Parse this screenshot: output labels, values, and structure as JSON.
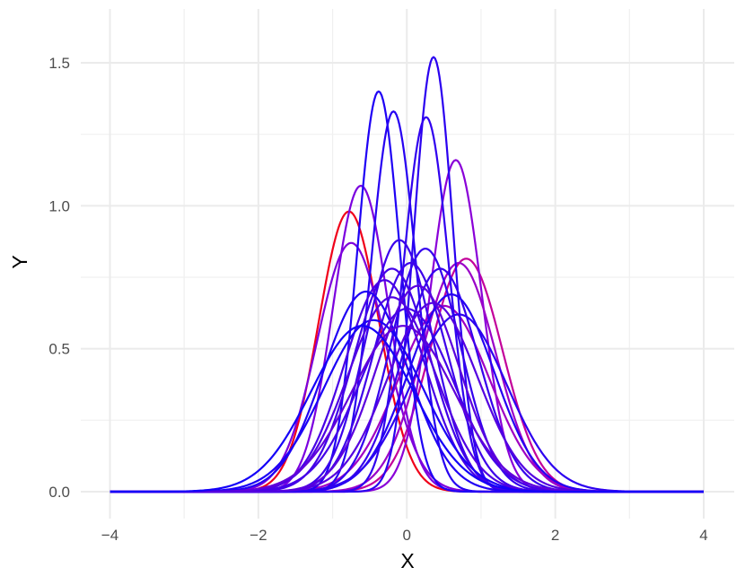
{
  "chart_data": {
    "type": "line",
    "title": "",
    "xlabel": "X",
    "ylabel": "Y",
    "xlim": [
      -4,
      4
    ],
    "ylim": [
      -0.05,
      1.6
    ],
    "x_ticks": [
      -4,
      -2,
      0,
      2,
      4
    ],
    "x_tick_labels": [
      "−4",
      "−2",
      "0",
      "2",
      "4"
    ],
    "y_ticks": [
      0.0,
      0.5,
      1.0,
      1.5
    ],
    "y_tick_labels": [
      "0.0",
      "0.5",
      "1.0",
      "1.5"
    ],
    "grid": true,
    "legend": "none",
    "description_of_series": "Gaussian density curves; each entry gives mean (mu), peak height (peak) and line color",
    "series": [
      {
        "mu": -0.78,
        "peak": 0.98,
        "color": "#f0001a"
      },
      {
        "mu": 0.8,
        "peak": 0.815,
        "color": "#c3009a"
      },
      {
        "mu": 0.66,
        "peak": 1.16,
        "color": "#8a00d8"
      },
      {
        "mu": -0.62,
        "peak": 1.07,
        "color": "#7b00df"
      },
      {
        "mu": -0.75,
        "peak": 0.87,
        "color": "#7d00dc"
      },
      {
        "mu": 0.7,
        "peak": 0.8,
        "color": "#9a00c8"
      },
      {
        "mu": 0.5,
        "peak": 0.65,
        "color": "#a000c2"
      },
      {
        "mu": 0.36,
        "peak": 1.52,
        "color": "#2a00f0"
      },
      {
        "mu": -0.38,
        "peak": 1.4,
        "color": "#1e00f5"
      },
      {
        "mu": -0.18,
        "peak": 1.33,
        "color": "#2600f2"
      },
      {
        "mu": 0.26,
        "peak": 1.31,
        "color": "#3000ef"
      },
      {
        "mu": -0.1,
        "peak": 0.88,
        "color": "#3a00ec"
      },
      {
        "mu": 0.25,
        "peak": 0.85,
        "color": "#3300ee"
      },
      {
        "mu": -0.2,
        "peak": 0.78,
        "color": "#4200e8"
      },
      {
        "mu": 0.05,
        "peak": 0.8,
        "color": "#3d00ea"
      },
      {
        "mu": -0.3,
        "peak": 0.74,
        "color": "#4800e6"
      },
      {
        "mu": 0.45,
        "peak": 0.78,
        "color": "#3600ed"
      },
      {
        "mu": -0.55,
        "peak": 0.7,
        "color": "#2000f4"
      },
      {
        "mu": 0.6,
        "peak": 0.69,
        "color": "#2400f3"
      },
      {
        "mu": -0.45,
        "peak": 0.6,
        "color": "#1a00f6"
      },
      {
        "mu": -0.2,
        "peak": 0.68,
        "color": "#5000e2"
      },
      {
        "mu": 0.15,
        "peak": 0.72,
        "color": "#5a00de"
      },
      {
        "mu": 0.0,
        "peak": 0.64,
        "color": "#4400e8"
      },
      {
        "mu": 0.7,
        "peak": 0.62,
        "color": "#2c00f0"
      },
      {
        "mu": -0.05,
        "peak": 0.58,
        "color": "#6000db"
      },
      {
        "mu": 0.35,
        "peak": 0.66,
        "color": "#5400e0"
      },
      {
        "mu": -0.6,
        "peak": 0.58,
        "color": "#1400f8"
      }
    ]
  }
}
